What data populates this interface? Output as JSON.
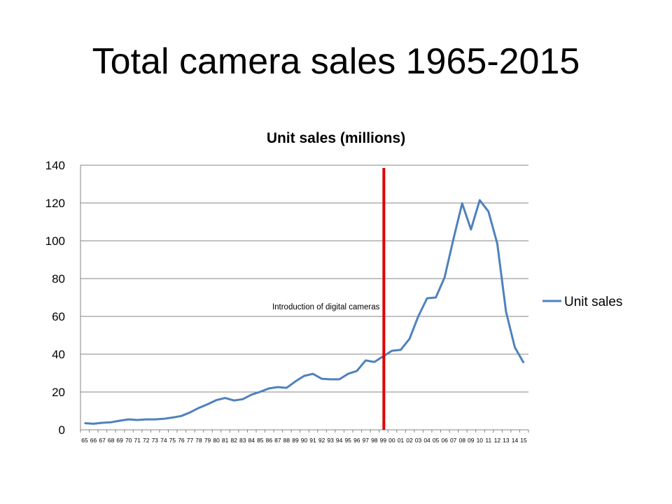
{
  "slide": {
    "title": "Total camera sales 1965-2015"
  },
  "colors": {
    "series": "#4f81bd",
    "marker_line": "#e00000",
    "grid": "#868686"
  },
  "chart_data": {
    "type": "line",
    "title": "Unit sales (millions)",
    "xlabel": "",
    "ylabel": "",
    "ylim": [
      0,
      140
    ],
    "yticks": [
      0,
      20,
      40,
      60,
      80,
      100,
      120,
      140
    ],
    "grid": true,
    "legend_position": "right",
    "categories": [
      "65",
      "66",
      "67",
      "68",
      "69",
      "70",
      "71",
      "72",
      "73",
      "74",
      "75",
      "76",
      "77",
      "78",
      "79",
      "80",
      "81",
      "82",
      "83",
      "84",
      "85",
      "86",
      "87",
      "88",
      "89",
      "90",
      "91",
      "92",
      "93",
      "94",
      "95",
      "96",
      "97",
      "98",
      "99",
      "00",
      "01",
      "02",
      "03",
      "04",
      "05",
      "06",
      "07",
      "08",
      "09",
      "10",
      "11",
      "12",
      "13",
      "14",
      "15"
    ],
    "series": [
      {
        "name": "Unit sales",
        "values": [
          3.5,
          3.2,
          3.7,
          4.0,
          4.8,
          5.5,
          5.2,
          5.5,
          5.5,
          5.8,
          6.5,
          7.3,
          9.2,
          11.6,
          13.5,
          15.7,
          16.8,
          15.5,
          16.2,
          18.6,
          20.1,
          21.9,
          22.6,
          22.2,
          25.6,
          28.5,
          29.6,
          27.0,
          26.7,
          26.7,
          29.6,
          31.1,
          36.7,
          35.9,
          38.9,
          41.8,
          42.3,
          48.1,
          60.0,
          69.6,
          70.0,
          80.6,
          100.8,
          119.8,
          106.0,
          121.5,
          115.5,
          98.5,
          62.5,
          43.6,
          35.5
        ]
      }
    ],
    "annotations": [
      {
        "text": "Introduction of digital cameras",
        "x": "99"
      }
    ]
  }
}
